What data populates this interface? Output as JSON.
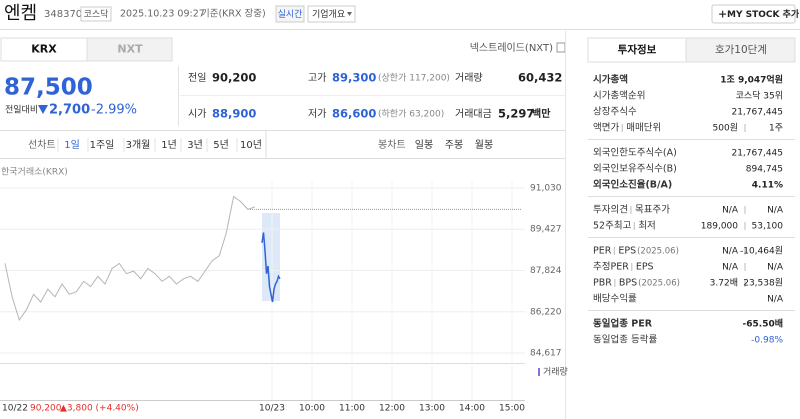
{
  "header": {
    "name": "엔켐",
    "code": "348370",
    "market": "코스닥",
    "datetime": "2025.10.23 09:27",
    "basis": "기준(KRX 장중)",
    "realtime": "실시간",
    "overview": "기업개요",
    "my_stock": "MY STOCK 추가"
  },
  "exchange_tabs": [
    "KRX",
    "NXT"
  ],
  "nxt_link": "넥스트레이드(NXT)",
  "quote": {
    "price": "87,500",
    "change_label": "전일대비",
    "change": "2,700",
    "change_pct": "-2.99%"
  },
  "stats": [
    {
      "label": "전일",
      "value": "90,200"
    },
    {
      "label": "고가",
      "value": "89,300",
      "note": "(상한가 117,200)",
      "tone": "down"
    },
    {
      "label": "거래량",
      "value": "60,432"
    },
    {
      "label": "시가",
      "value": "88,900",
      "tone": "down"
    },
    {
      "label": "저가",
      "value": "86,600",
      "note": "(하한가 63,200)",
      "tone": "down"
    },
    {
      "label": "거래대금",
      "value": "5,297",
      "unit": "백만"
    }
  ],
  "periods": {
    "line_label": "선차트",
    "line": [
      "1일",
      "1주일",
      "3개월",
      "1년",
      "3년",
      "5년",
      "10년"
    ],
    "selected": 0,
    "candle_label": "봉차트",
    "candle": [
      "일봉",
      "주봉",
      "월봉"
    ]
  },
  "chart_data": {
    "type": "line",
    "source": "한국거래소(KRX)",
    "ylim": [
      84617,
      91030
    ],
    "yticks": [
      {
        "value": 91030,
        "label": "91,030"
      },
      {
        "value": 89427,
        "label": "89,427"
      },
      {
        "value": 87824,
        "label": "87,824"
      },
      {
        "value": 86220,
        "label": "86,220"
      },
      {
        "value": 84617,
        "label": "84,617"
      }
    ],
    "x_labels": [
      "10/22",
      "10/23",
      "10:00",
      "11:00",
      "12:00",
      "13:00",
      "14:00",
      "15:00"
    ],
    "base_value": 90200,
    "series": [
      {
        "color": "#b5b5b5",
        "values": [
          88100,
          86800,
          85900,
          86300,
          86900,
          86600,
          87100,
          86800,
          87300,
          86900,
          87000,
          87400,
          87200,
          87600,
          87300,
          87900,
          88100,
          87700,
          87800,
          87500,
          87900,
          87700,
          87400,
          87600,
          87300,
          87500,
          87600,
          87400,
          87800,
          88200,
          88400,
          89300,
          90700,
          90500,
          90200,
          90300
        ]
      },
      {
        "color": "#2f63d6",
        "values": [
          88900,
          89300,
          88600,
          87700,
          88000,
          87200,
          86900,
          86600,
          87100,
          87300,
          87400,
          87600,
          87500
        ]
      }
    ],
    "volume_label": "거래량",
    "footer": {
      "price": "90,200",
      "change": "▲3,800 (+4.40%)"
    }
  },
  "invest_tabs": [
    "투자정보",
    "호가10단계"
  ],
  "invest_sections": [
    [
      {
        "label": [
          "시가총액"
        ],
        "value": [
          "1조 9,047억원"
        ],
        "bold": true
      },
      {
        "label": [
          "시가총액순위"
        ],
        "value": [
          "코스닥 35위"
        ]
      },
      {
        "label": [
          "상장주식수"
        ],
        "value": [
          "21,767,445"
        ]
      },
      {
        "label": [
          "액면가",
          "매매단위"
        ],
        "value": [
          "500원",
          "1주"
        ]
      }
    ],
    [
      {
        "label": [
          "외국인한도주식수(A)"
        ],
        "value": [
          "21,767,445"
        ]
      },
      {
        "label": [
          "외국인보유주식수(B)"
        ],
        "value": [
          "894,745"
        ]
      },
      {
        "label": [
          "외국인소진율(B/A)"
        ],
        "value": [
          "4.11%"
        ],
        "bold": true
      }
    ],
    [
      {
        "label": [
          "투자의견",
          "목표주가"
        ],
        "value": [
          "N/A",
          "N/A"
        ]
      },
      {
        "label": [
          "52주최고",
          "최저"
        ],
        "value": [
          "189,000",
          "53,100"
        ]
      }
    ],
    [
      {
        "label": [
          "PER",
          "EPS"
        ],
        "note": "(2025.06)",
        "value": [
          "N/A",
          "-10,464원"
        ]
      },
      {
        "label": [
          "추정PER",
          "EPS"
        ],
        "value": [
          "N/A",
          "N/A"
        ]
      },
      {
        "label": [
          "PBR",
          "BPS"
        ],
        "note": "(2025.06)",
        "value": [
          "3.72배",
          "23,538원"
        ]
      },
      {
        "label": [
          "배당수익률"
        ],
        "value": [
          "N/A"
        ]
      }
    ],
    [
      {
        "label": [
          "동일업종 PER"
        ],
        "value": [
          "-65.50배"
        ],
        "bold": true
      },
      {
        "label": [
          "동일업종 등락률"
        ],
        "value": [
          "-0.98%"
        ],
        "tone": "down"
      }
    ]
  ]
}
